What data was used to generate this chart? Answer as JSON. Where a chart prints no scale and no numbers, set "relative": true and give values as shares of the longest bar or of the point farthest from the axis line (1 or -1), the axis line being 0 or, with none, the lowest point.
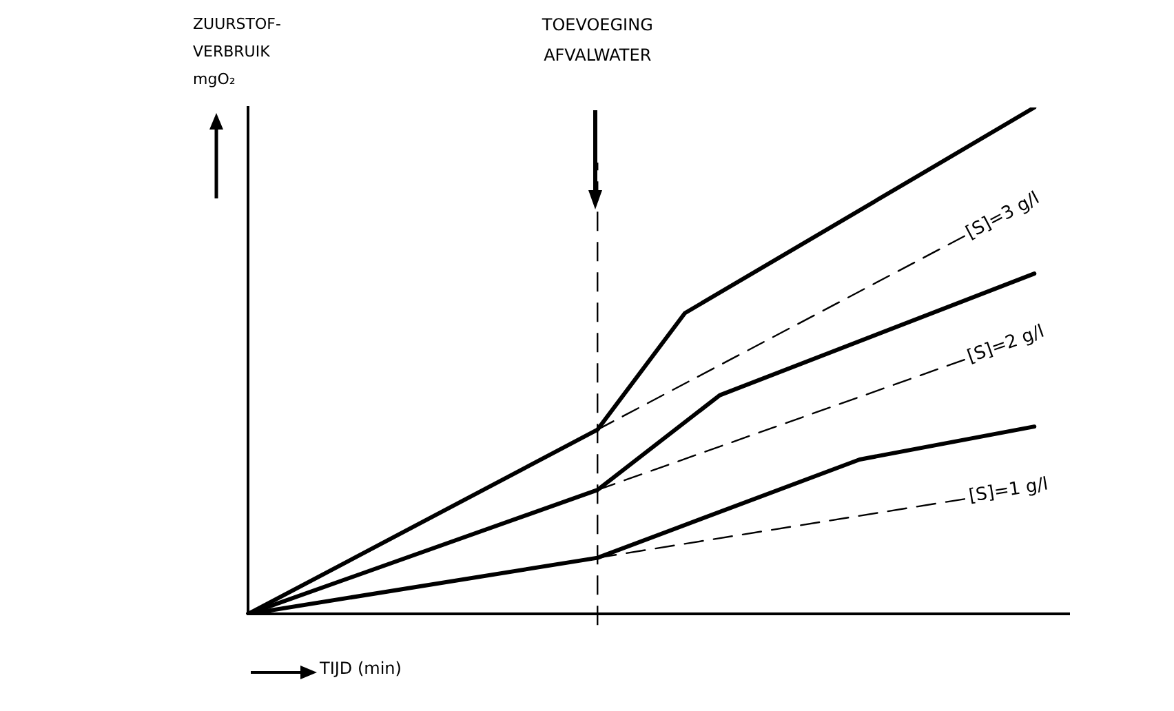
{
  "chart_data": {
    "type": "line",
    "relative": true,
    "xlabel": "TIJD (min)",
    "ylabel": "ZUURSTOF-\nVERBRUIK\nmgO₂",
    "grid": false,
    "legend": false,
    "marker": "none",
    "categories": [
      null,
      null,
      null,
      null,
      null,
      null,
      null,
      null,
      null,
      null,
      null,
      null,
      null,
      null,
      null,
      null,
      null,
      null,
      null,
      null,
      null,
      null,
      null,
      null,
      null,
      null,
      null,
      null,
      null,
      null,
      null,
      null,
      null,
      null,
      null,
      null,
      null,
      null,
      null,
      null,
      null,
      null,
      null,
      null,
      null,
      null,
      null,
      null
    ],
    "annotations": [
      "TOEVOEGING\nAFVALWATER"
    ],
    "series": [
      {
        "name": "[S]=3 g/l",
        "color": "#000000",
        "line_style": "solid",
        "values": [
          0,
          null,
          null,
          null,
          null,
          null,
          null,
          null,
          null,
          null,
          null,
          null,
          null,
          null,
          null,
          null,
          null,
          null,
          null,
          null,
          0.364,
          null,
          null,
          null,
          null,
          0.594,
          null,
          null,
          null,
          null,
          null,
          null,
          null,
          null,
          null,
          null,
          null,
          null,
          null,
          null,
          null,
          null,
          null,
          null,
          null,
          1,
          null,
          null
        ]
      },
      {
        "name": "[S]=2 g/l",
        "color": "#000000",
        "line_style": "solid",
        "values": [
          0,
          null,
          null,
          null,
          null,
          null,
          null,
          null,
          null,
          null,
          null,
          null,
          null,
          null,
          null,
          null,
          null,
          null,
          null,
          null,
          0.245,
          null,
          null,
          null,
          null,
          null,
          null,
          0.432,
          null,
          null,
          null,
          null,
          null,
          null,
          null,
          null,
          null,
          null,
          null,
          null,
          null,
          null,
          null,
          null,
          null,
          0.672,
          null,
          null
        ]
      },
      {
        "name": "[S]=1 g/l",
        "color": "#000000",
        "line_style": "solid",
        "values": [
          0,
          null,
          null,
          null,
          null,
          null,
          null,
          null,
          null,
          null,
          null,
          null,
          null,
          null,
          null,
          null,
          null,
          null,
          null,
          null,
          0.111,
          null,
          null,
          null,
          null,
          null,
          null,
          null,
          null,
          null,
          null,
          null,
          null,
          null,
          null,
          0.305,
          null,
          null,
          null,
          null,
          null,
          null,
          null,
          null,
          null,
          0.37,
          null,
          null
        ]
      },
      {
        "color": "#000000",
        "line_style": "dashed",
        "values": [
          null,
          null,
          null,
          null,
          null,
          null,
          null,
          null,
          null,
          null,
          null,
          null,
          null,
          null,
          null,
          null,
          null,
          null,
          null,
          null,
          0.364,
          null,
          null,
          null,
          null,
          null,
          null,
          null,
          null,
          null,
          null,
          null,
          null,
          null,
          null,
          null,
          null,
          null,
          null,
          null,
          null,
          0.746,
          null,
          null,
          null,
          null,
          null,
          null
        ]
      },
      {
        "color": "#000000",
        "line_style": "dashed",
        "values": [
          null,
          null,
          null,
          null,
          null,
          null,
          null,
          null,
          null,
          null,
          null,
          null,
          null,
          null,
          null,
          null,
          null,
          null,
          null,
          null,
          0.245,
          null,
          null,
          null,
          null,
          null,
          null,
          null,
          null,
          null,
          null,
          null,
          null,
          null,
          null,
          null,
          null,
          null,
          null,
          null,
          null,
          0.502,
          null,
          null,
          null,
          null,
          null,
          null
        ]
      },
      {
        "color": "#000000",
        "line_style": "dashed",
        "values": [
          null,
          null,
          null,
          null,
          null,
          null,
          null,
          null,
          null,
          null,
          null,
          null,
          null,
          null,
          null,
          null,
          null,
          null,
          null,
          null,
          0.111,
          null,
          null,
          null,
          null,
          null,
          null,
          null,
          null,
          null,
          null,
          null,
          null,
          null,
          null,
          null,
          null,
          null,
          null,
          null,
          null,
          0.227,
          null,
          null,
          null,
          null,
          null,
          null
        ]
      }
    ]
  }
}
